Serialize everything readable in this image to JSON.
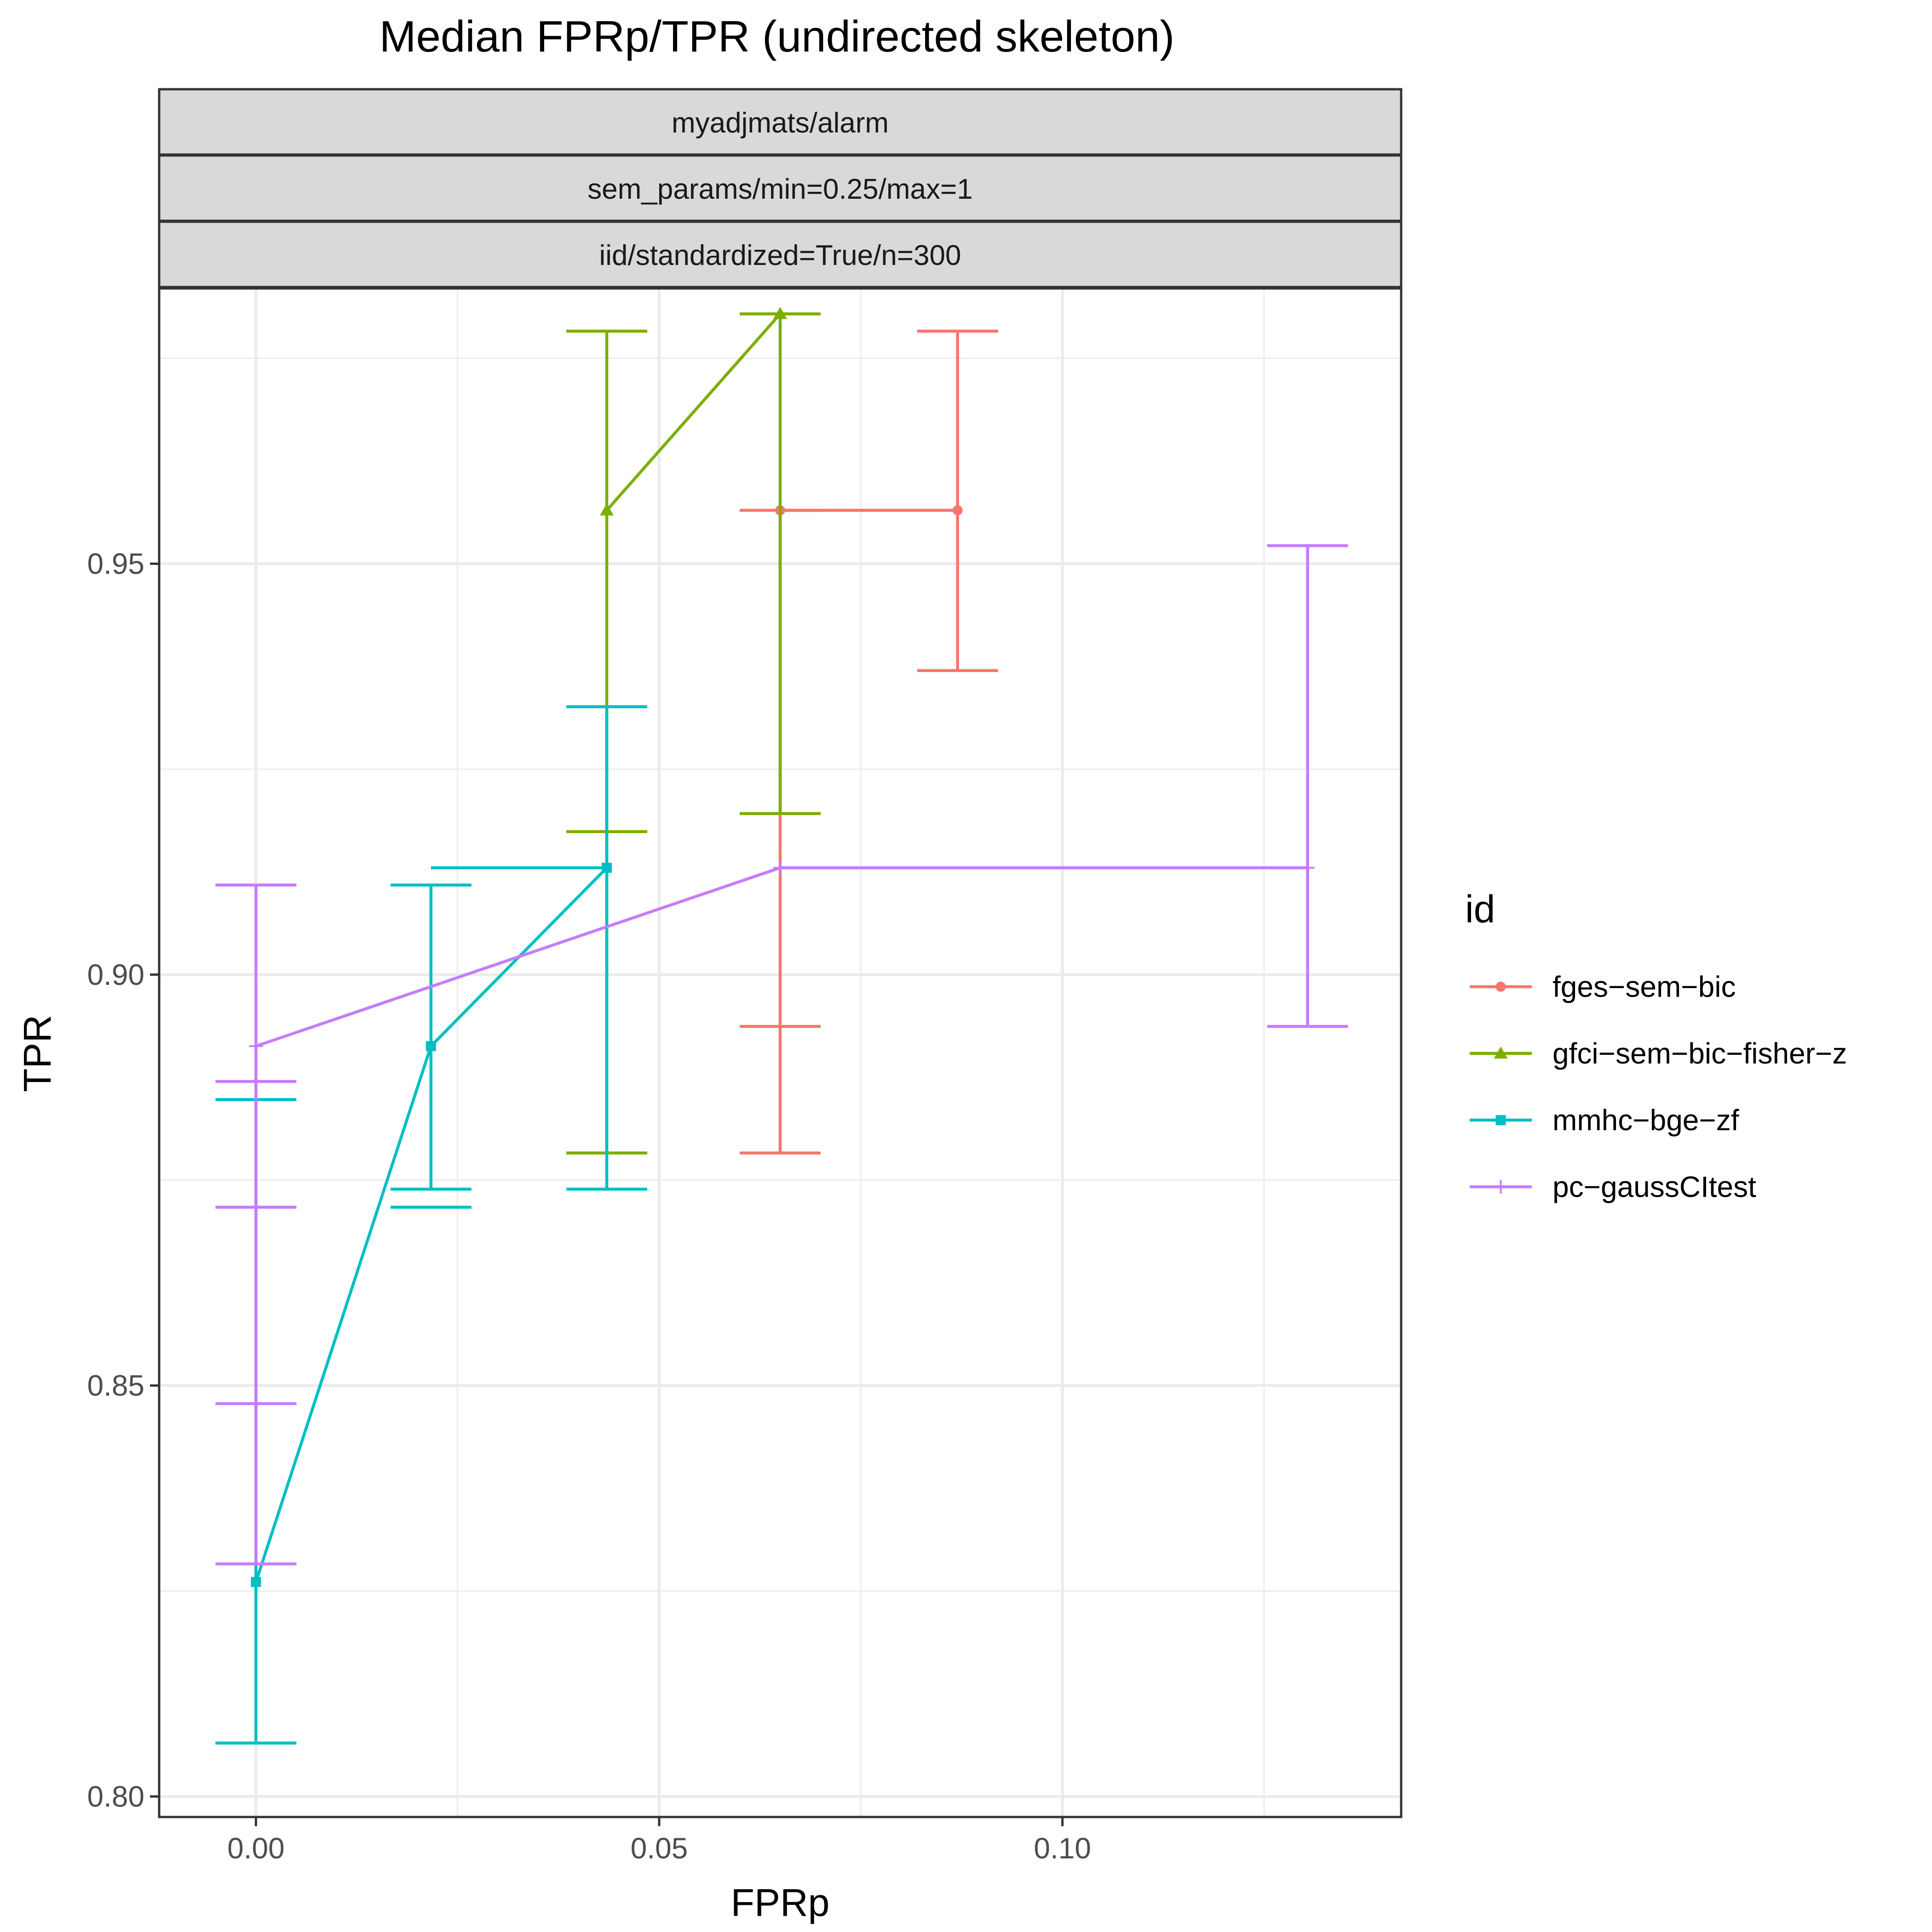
{
  "chart_data": {
    "type": "line",
    "title": "Median FPRp/TPR (undirected skeleton)",
    "xlabel": "FPRp",
    "ylabel": "TPR",
    "facet_strips": [
      "myadjmats/alarm",
      "sem_params/min=0.25/max=1",
      "iid/standardized=True/n=300"
    ],
    "xlim": [
      -0.012,
      0.142
    ],
    "ylim": [
      0.7975,
      0.9835
    ],
    "x_ticks": [
      0.0,
      0.05,
      0.1
    ],
    "x_tick_labels": [
      "0.00",
      "0.05",
      "0.10"
    ],
    "y_ticks": [
      0.8,
      0.85,
      0.9,
      0.95
    ],
    "y_tick_labels": [
      "0.80",
      "0.85",
      "0.90",
      "0.95"
    ],
    "grid": true,
    "legend_title": "id",
    "legend_position": "right",
    "series": [
      {
        "name": "fges−sem−bic",
        "color": "#F8766D",
        "marker": "circle",
        "points": [
          {
            "x": 0.065,
            "y": 0.9565,
            "ymin": 0.8783,
            "ymax": 0.9565
          },
          {
            "x": 0.087,
            "y": 0.9565,
            "ymin": 0.937,
            "ymax": 0.9783
          }
        ],
        "extra_caps": [
          {
            "x": 0.065,
            "y": 0.8937
          }
        ],
        "h_lines": [
          {
            "x1": 0.065,
            "x2": 0.087,
            "y": 0.9565
          }
        ]
      },
      {
        "name": "gfci−sem−bic−fisher−z",
        "color": "#7CAE00",
        "marker": "triangle",
        "points": [
          {
            "x": 0.0435,
            "y": 0.9565,
            "ymin": 0.8783,
            "ymax": 0.9783
          },
          {
            "x": 0.065,
            "y": 0.9804,
            "ymin": 0.9196,
            "ymax": 0.9804
          }
        ],
        "extra_caps": [
          {
            "x": 0.0435,
            "y": 0.9174
          }
        ],
        "h_lines": []
      },
      {
        "name": "mmhc−bge−zf",
        "color": "#00BFC4",
        "marker": "square",
        "points": [
          {
            "x": 0.0,
            "y": 0.8261,
            "ymin": 0.8065,
            "ymax": 0.8848
          },
          {
            "x": 0.0217,
            "y": 0.8913,
            "ymin": 0.8739,
            "ymax": 0.9109
          },
          {
            "x": 0.0435,
            "y": 0.913,
            "ymin": 0.8739,
            "ymax": 0.9326
          }
        ],
        "extra_caps": [
          {
            "x": 0.0217,
            "y": 0.8717
          }
        ],
        "h_lines": [
          {
            "x1": 0.0217,
            "x2": 0.0435,
            "y": 0.913
          }
        ]
      },
      {
        "name": "pc−gaussCItest",
        "color": "#C77CFF",
        "marker": "plus",
        "points": [
          {
            "x": 0.0,
            "y": 0.8913,
            "ymin": 0.8283,
            "ymax": 0.9109
          },
          {
            "x": 0.065,
            "y": 0.913,
            "ymin": 0.913,
            "ymax": 0.913
          },
          {
            "x": 0.1304,
            "y": 0.913,
            "ymin": 0.8937,
            "ymax": 0.9522
          }
        ],
        "extra_caps": [
          {
            "x": 0.0,
            "y": 0.887
          },
          {
            "x": 0.0,
            "y": 0.8717
          },
          {
            "x": 0.0,
            "y": 0.8478
          }
        ],
        "h_lines": [
          {
            "x1": 0.065,
            "x2": 0.1304,
            "y": 0.913
          }
        ]
      }
    ]
  }
}
